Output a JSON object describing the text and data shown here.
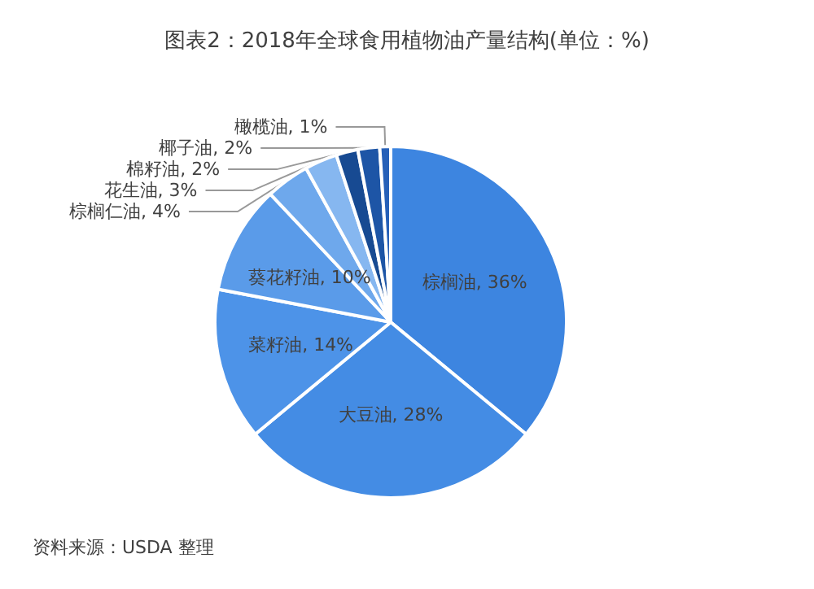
{
  "chart_data": {
    "type": "pie",
    "title": "图表2：2018年全球食用植物油产量结构(单位：%)",
    "categories": [
      "棕榈油",
      "大豆油",
      "菜籽油",
      "葵花籽油",
      "棕榈仁油",
      "花生油",
      "棉籽油",
      "椰子油",
      "橄榄油"
    ],
    "values": [
      36,
      28,
      14,
      10,
      4,
      3,
      2,
      2,
      1
    ],
    "colors": [
      "#3d85e0",
      "#448ce4",
      "#4d93e8",
      "#5a9be9",
      "#6ea8ec",
      "#86b7f0",
      "#174a92",
      "#1d55a6",
      "#2660b8"
    ],
    "value_labels": [
      ", 36%",
      ", 28%",
      ", 14%",
      ", 10%",
      ", 4%",
      ", 3%",
      ", 2%",
      ", 2%",
      ", 1%"
    ],
    "legend": false,
    "annotations": [
      "资料来源：USDA 整理"
    ]
  }
}
